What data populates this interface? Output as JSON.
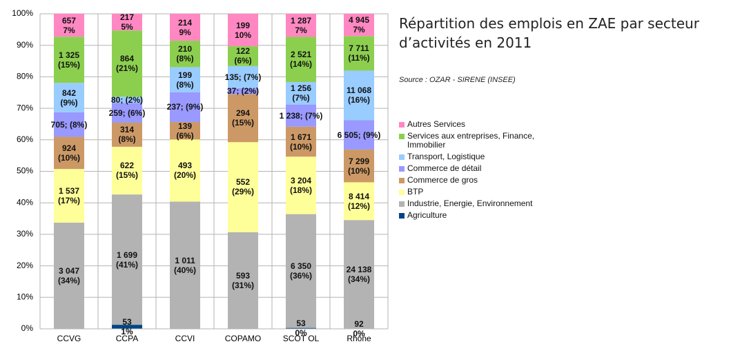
{
  "chart_data": {
    "type": "stacked_bar_100",
    "title": "Répartition des emplois en ZAE par secteur d’activités en 2011",
    "subtitle": "Source : OZAR - SIRENE (INSEE)",
    "categories": [
      "CCVG",
      "CCPA",
      "CCVI",
      "COPAMO",
      "SCOT OL",
      "Rhône"
    ],
    "ylim": [
      0,
      100
    ],
    "yticks": [
      {
        "value": 0,
        "label": "0%"
      },
      {
        "value": 10,
        "label": "10%"
      },
      {
        "value": 20,
        "label": "20%"
      },
      {
        "value": 30,
        "label": "30%"
      },
      {
        "value": 40,
        "label": "40%"
      },
      {
        "value": 50,
        "label": "50%"
      },
      {
        "value": 60,
        "label": "60%"
      },
      {
        "value": 70,
        "label": "70%"
      },
      {
        "value": 80,
        "label": "80%"
      },
      {
        "value": 90,
        "label": "90%"
      },
      {
        "value": 100,
        "label": "100%"
      }
    ],
    "grid": true,
    "legend": "right",
    "series": [
      {
        "name": "Agriculture",
        "color": "#004586",
        "values": [
          0,
          1.29,
          0,
          0,
          0.3,
          0.13
        ],
        "value_labels": [
          null,
          "53\n1%",
          null,
          null,
          "53\n0%",
          "92\n0%"
        ]
      },
      {
        "name": "Industrie, Energie, Environnement",
        "color": "#b3b3b3",
        "values": [
          33.72,
          41.36,
          40.39,
          30.69,
          36.12,
          34.4
        ],
        "value_labels": [
          "3 047\n(34%)",
          "1 699\n(41%)",
          "1 011\n(40%)",
          "593\n(31%)",
          "6 350\n(36%)",
          "24 138\n(34%)"
        ]
      },
      {
        "name": "BTP",
        "color": "#ffff99",
        "values": [
          17.01,
          15.14,
          19.7,
          28.57,
          18.23,
          11.99
        ],
        "value_labels": [
          "1 537\n(17%)",
          "622\n(15%)",
          "493\n(20%)",
          "552\n(29%)",
          "3 204\n(18%)",
          "8 414\n(12%)"
        ]
      },
      {
        "name": "Commerce de gros",
        "color": "#cc9966",
        "values": [
          10.22,
          7.64,
          5.55,
          15.22,
          9.51,
          10.4
        ],
        "value_labels": [
          "924\n(10%)",
          "314\n(8%)",
          "139\n(6%)",
          "294\n(15%)",
          "1 671\n(10%)",
          "7 299\n(10%)"
        ]
      },
      {
        "name": "Commerce de détail",
        "color": "#9999ff",
        "values": [
          7.8,
          6.3,
          9.47,
          1.92,
          7.04,
          9.27
        ],
        "value_labels": [
          "705; (8%)",
          "259; (6%)",
          "237; (9%)",
          "37; (2%)",
          "1 238; (7%)",
          "6 505; (9%)"
        ]
      },
      {
        "name": "Transport, Logistique",
        "color": "#99ccff",
        "values": [
          9.32,
          1.95,
          7.95,
          6.99,
          7.14,
          15.77
        ],
        "value_labels": [
          "842\n(9%)",
          "80; (2%)",
          "199\n(8%)",
          "135; (7%)",
          "1 256\n(7%)",
          "11 068\n(16%)"
        ]
      },
      {
        "name": "Services aux entreprises, Finance, Immobilier",
        "color": "#8ccf4f",
        "values": [
          14.66,
          21.03,
          8.39,
          6.31,
          14.34,
          10.99
        ],
        "value_labels": [
          "1 325\n(15%)",
          "864\n(21%)",
          "210\n(8%)",
          "122\n(6%)",
          "2 521\n(14%)",
          "7 711\n(11%)"
        ]
      },
      {
        "name": "Autres Services",
        "color": "#ff88c2",
        "values": [
          7.27,
          5.28,
          8.55,
          10.3,
          7.32,
          7.05
        ],
        "value_labels": [
          "657\n7%",
          "217\n5%",
          "214\n9%",
          "199\n10%",
          "1 287\n7%",
          "4 945\n7%"
        ]
      }
    ]
  }
}
